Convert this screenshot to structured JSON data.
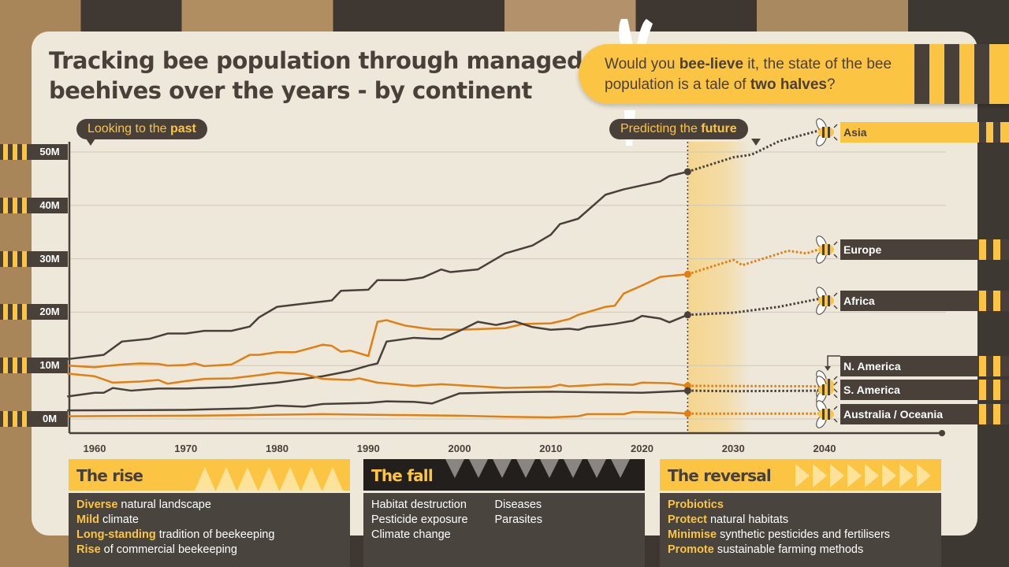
{
  "title": "Tracking bee population through managed beehives over the years - by continent",
  "callout": {
    "parts": [
      "Would you ",
      "bee-lieve",
      " it, the state of the bee population is a tale of ",
      "two halves",
      "?"
    ]
  },
  "bubbles": {
    "past": {
      "pre": "Looking to the ",
      "bold": "past"
    },
    "future": {
      "pre": "Predicting the ",
      "bold": "future"
    }
  },
  "colors": {
    "dark": "#4a403a",
    "orange": "#e07f12",
    "yellow": "#fbc543",
    "card": "#eee8db"
  },
  "chart_data": {
    "type": "line",
    "title": "Tracking bee population through managed beehives over the years - by continent",
    "xlabel": "",
    "ylabel": "",
    "x_ticks": [
      "1960",
      "1970",
      "1980",
      "1990",
      "2000",
      "2010",
      "2020",
      "2030",
      "2040"
    ],
    "y_ticks": [
      "0M",
      "10M",
      "20M",
      "30M",
      "40M",
      "50M"
    ],
    "xlim": [
      1957,
      2047
    ],
    "ylim": [
      0,
      50
    ],
    "grid": true,
    "forecast_start": 2025,
    "series": [
      {
        "name": "Asia",
        "color": "dark",
        "highlight": true,
        "history": [
          [
            1957,
            11.2
          ],
          [
            1961,
            12
          ],
          [
            1963,
            14.5
          ],
          [
            1966,
            15
          ],
          [
            1968,
            16
          ],
          [
            1970,
            16
          ],
          [
            1972,
            16.5
          ],
          [
            1975,
            16.5
          ],
          [
            1977,
            17.3
          ],
          [
            1978,
            19
          ],
          [
            1980,
            21
          ],
          [
            1985,
            22
          ],
          [
            1986,
            22.2
          ],
          [
            1987,
            24
          ],
          [
            1990,
            24.2
          ],
          [
            1991,
            26
          ],
          [
            1994,
            26
          ],
          [
            1996,
            26.5
          ],
          [
            1998,
            28
          ],
          [
            1999,
            27.5
          ],
          [
            2002,
            28
          ],
          [
            2005,
            31
          ],
          [
            2008,
            32.5
          ],
          [
            2010,
            34.5
          ],
          [
            2011,
            36.5
          ],
          [
            2013,
            37.5
          ],
          [
            2016,
            42
          ],
          [
            2018,
            43
          ],
          [
            2022,
            44.5
          ],
          [
            2023,
            45.5
          ],
          [
            2025,
            46.3
          ]
        ],
        "forecast": [
          [
            2025,
            46.3
          ],
          [
            2030,
            49
          ],
          [
            2032,
            49.5
          ],
          [
            2035,
            52
          ],
          [
            2040,
            54.3
          ]
        ]
      },
      {
        "name": "Europe",
        "color": "orange",
        "history": [
          [
            1957,
            10
          ],
          [
            1960,
            9.7
          ],
          [
            1963,
            10.2
          ],
          [
            1965,
            10.4
          ],
          [
            1967,
            10.3
          ],
          [
            1968,
            10
          ],
          [
            1970,
            10.1
          ],
          [
            1971,
            10.4
          ],
          [
            1972,
            9.9
          ],
          [
            1975,
            10.2
          ],
          [
            1977,
            12
          ],
          [
            1978,
            12
          ],
          [
            1980,
            12.5
          ],
          [
            1982,
            12.5
          ],
          [
            1985,
            13.9
          ],
          [
            1986,
            13.7
          ],
          [
            1987,
            12.6
          ],
          [
            1988,
            12.8
          ],
          [
            1990,
            11.8
          ],
          [
            1991,
            18.2
          ],
          [
            1992,
            18.5
          ],
          [
            1994,
            17.5
          ],
          [
            1996,
            17
          ],
          [
            1997,
            16.8
          ],
          [
            2000,
            16.7
          ],
          [
            2005,
            17
          ],
          [
            2007,
            17.8
          ],
          [
            2010,
            17.9
          ],
          [
            2012,
            18.7
          ],
          [
            2013,
            19.5
          ],
          [
            2016,
            21
          ],
          [
            2017,
            21.2
          ],
          [
            2018,
            23.5
          ],
          [
            2020,
            25
          ],
          [
            2022,
            26.6
          ],
          [
            2025,
            27.1
          ]
        ],
        "forecast": [
          [
            2025,
            27.1
          ],
          [
            2030,
            29.8
          ],
          [
            2031,
            28.8
          ],
          [
            2036,
            31.5
          ],
          [
            2038,
            31
          ],
          [
            2040,
            32.1
          ]
        ]
      },
      {
        "name": "Africa",
        "color": "dark",
        "history": [
          [
            1957,
            4.2
          ],
          [
            1960,
            4.9
          ],
          [
            1961,
            4.9
          ],
          [
            1962,
            5.8
          ],
          [
            1964,
            5.3
          ],
          [
            1967,
            5.7
          ],
          [
            1970,
            5.7
          ],
          [
            1975,
            6
          ],
          [
            1978,
            6.5
          ],
          [
            1980,
            6.8
          ],
          [
            1985,
            8
          ],
          [
            1988,
            9
          ],
          [
            1990,
            10
          ],
          [
            1991,
            10.4
          ],
          [
            1992,
            14.5
          ],
          [
            1995,
            15.2
          ],
          [
            1997,
            15
          ],
          [
            1998,
            15
          ],
          [
            2000,
            16.5
          ],
          [
            2002,
            18.2
          ],
          [
            2004,
            17.6
          ],
          [
            2006,
            18.3
          ],
          [
            2008,
            17.2
          ],
          [
            2010,
            16.7
          ],
          [
            2012,
            16.9
          ],
          [
            2013,
            16.7
          ],
          [
            2014,
            17.2
          ],
          [
            2017,
            17.8
          ],
          [
            2019,
            18.4
          ],
          [
            2020,
            19.3
          ],
          [
            2022,
            18.8
          ],
          [
            2023,
            18.1
          ],
          [
            2025,
            19.5
          ]
        ],
        "forecast": [
          [
            2025,
            19.5
          ],
          [
            2030,
            19.9
          ],
          [
            2035,
            21
          ],
          [
            2040,
            22.7
          ]
        ]
      },
      {
        "name": "N. America",
        "color": "orange",
        "history": [
          [
            1957,
            8.5
          ],
          [
            1960,
            8
          ],
          [
            1962,
            6.8
          ],
          [
            1965,
            7
          ],
          [
            1967,
            7.3
          ],
          [
            1968,
            6.6
          ],
          [
            1970,
            7.1
          ],
          [
            1972,
            7.5
          ],
          [
            1975,
            7.6
          ],
          [
            1978,
            8.2
          ],
          [
            1980,
            8.7
          ],
          [
            1983,
            8.4
          ],
          [
            1985,
            7.5
          ],
          [
            1988,
            7.3
          ],
          [
            1989,
            7.6
          ],
          [
            1991,
            6.8
          ],
          [
            1995,
            6.2
          ],
          [
            1998,
            6.5
          ],
          [
            2005,
            5.8
          ],
          [
            2010,
            6.0
          ],
          [
            2011,
            6.4
          ],
          [
            2012,
            6.1
          ],
          [
            2016,
            6.5
          ],
          [
            2019,
            6.4
          ],
          [
            2020,
            6.8
          ],
          [
            2023,
            6.7
          ],
          [
            2025,
            6.2
          ]
        ],
        "forecast": [
          [
            2025,
            6.2
          ],
          [
            2040,
            6.1
          ]
        ]
      },
      {
        "name": "S. America",
        "color": "dark",
        "history": [
          [
            1957,
            1.6
          ],
          [
            1970,
            1.7
          ],
          [
            1977,
            2.0
          ],
          [
            1980,
            2.5
          ],
          [
            1983,
            2.3
          ],
          [
            1985,
            2.8
          ],
          [
            1990,
            3.0
          ],
          [
            1992,
            3.3
          ],
          [
            1995,
            3.2
          ],
          [
            1997,
            2.9
          ],
          [
            2000,
            4.8
          ],
          [
            2005,
            5.0
          ],
          [
            2010,
            5.1
          ],
          [
            2015,
            5.0
          ],
          [
            2020,
            4.9
          ],
          [
            2025,
            5.3
          ]
        ],
        "forecast": [
          [
            2025,
            5.3
          ],
          [
            2030,
            5.2
          ],
          [
            2040,
            5.3
          ]
        ]
      },
      {
        "name": "Australia / Oceania",
        "color": "orange",
        "history": [
          [
            1957,
            0.5
          ],
          [
            1970,
            0.6
          ],
          [
            1985,
            0.9
          ],
          [
            1990,
            0.8
          ],
          [
            2000,
            0.6
          ],
          [
            2005,
            0.4
          ],
          [
            2010,
            0.3
          ],
          [
            2013,
            0.5
          ],
          [
            2014,
            0.9
          ],
          [
            2018,
            0.9
          ],
          [
            2019,
            1.3
          ],
          [
            2023,
            1.2
          ],
          [
            2025,
            1.0
          ]
        ],
        "forecast": [
          [
            2025,
            1.0
          ],
          [
            2040,
            1.0
          ]
        ]
      }
    ]
  },
  "panels": [
    {
      "title": "The rise",
      "items": [
        [
          "Diverse",
          " natural landscape"
        ],
        [
          "Mild",
          " climate"
        ],
        [
          "Long-standing",
          " tradition of beekeeping"
        ],
        [
          "Rise",
          " of commercial beekeeping"
        ]
      ]
    },
    {
      "title": "The fall",
      "col1": [
        "Habitat destruction",
        "Pesticide exposure",
        "Climate change"
      ],
      "col2": [
        "Diseases",
        "Parasites"
      ]
    },
    {
      "title": "The reversal",
      "items": [
        [
          "Probiotics",
          ""
        ],
        [
          "Protect",
          " natural habitats"
        ],
        [
          "Minimise",
          " synthetic pesticides and fertilisers"
        ],
        [
          "Promote",
          " sustainable farming methods"
        ]
      ]
    }
  ]
}
